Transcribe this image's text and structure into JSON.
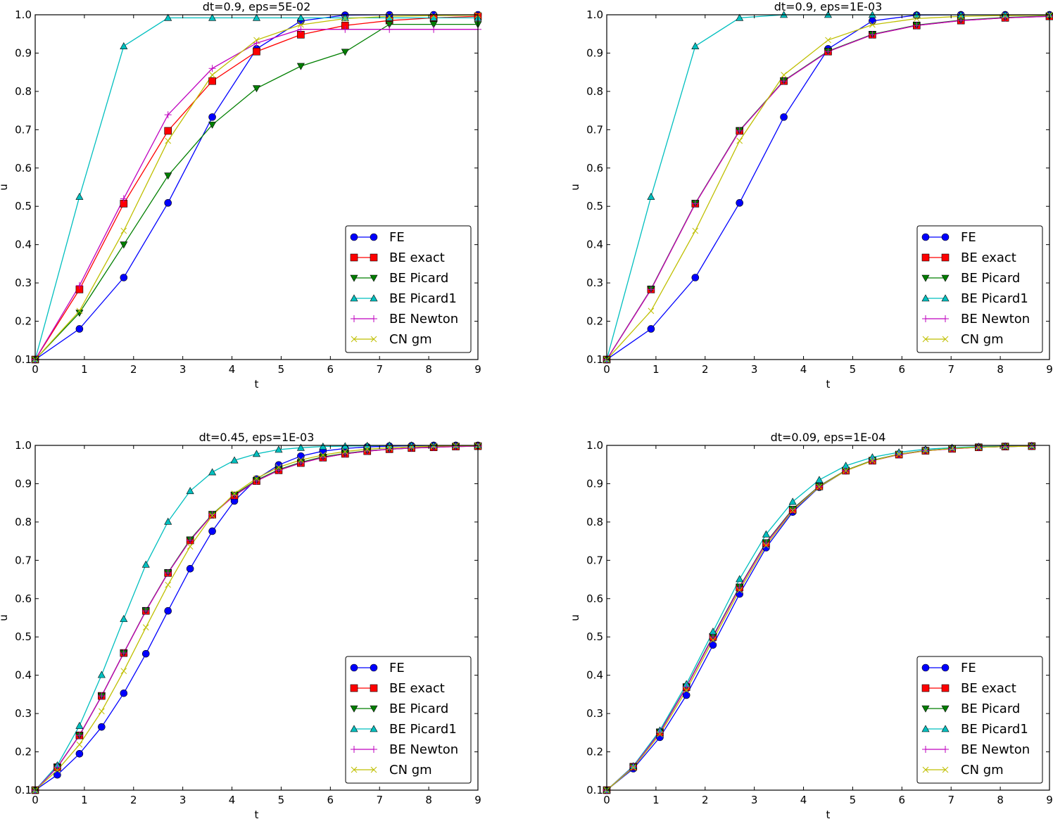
{
  "figure": {
    "legend_entries": [
      "FE",
      "BE exact",
      "BE Picard",
      "BE Picard1",
      "BE Newton",
      "CN gm"
    ]
  },
  "series_style": {
    "FE": {
      "color": "#0000ff",
      "marker": "circle"
    },
    "BE exact": {
      "color": "#ff0000",
      "marker": "square"
    },
    "BE Picard": {
      "color": "#007f00",
      "marker": "triangle-down"
    },
    "BE Picard1": {
      "color": "#00bfbf",
      "marker": "triangle-up"
    },
    "BE Newton": {
      "color": "#bf00bf",
      "marker": "plus"
    },
    "CN gm": {
      "color": "#bfbf00",
      "marker": "x"
    }
  },
  "chart_data": [
    {
      "type": "line",
      "title": "dt=0.9, eps=5E-02",
      "xlabel": "t",
      "ylabel": "u",
      "xlim": [
        0,
        9
      ],
      "ylim": [
        0.1,
        1.0
      ],
      "xticks": [
        "0",
        "1",
        "2",
        "3",
        "4",
        "5",
        "6",
        "7",
        "8",
        "9"
      ],
      "yticks": [
        "0.1",
        "0.2",
        "0.3",
        "0.4",
        "0.5",
        "0.6",
        "0.7",
        "0.8",
        "0.9",
        "1.0"
      ],
      "grid": false,
      "legend": "lower-right",
      "x": [
        0,
        0.9,
        1.8,
        2.7,
        3.6,
        4.5,
        5.4,
        6.3,
        7.2,
        8.1,
        9.0
      ],
      "series": [
        {
          "name": "FE",
          "values": [
            0.1,
            0.18,
            0.314,
            0.509,
            0.733,
            0.911,
            0.984,
            0.999,
            1.0,
            1.0,
            1.0
          ]
        },
        {
          "name": "BE exact",
          "values": [
            0.1,
            0.283,
            0.507,
            0.697,
            0.827,
            0.904,
            0.948,
            0.972,
            0.985,
            0.992,
            0.996
          ]
        },
        {
          "name": "BE Picard",
          "values": [
            0.1,
            0.222,
            0.4,
            0.58,
            0.713,
            0.808,
            0.866,
            0.903,
            0.975,
            0.975,
            0.975
          ]
        },
        {
          "name": "BE Picard1",
          "values": [
            0.1,
            0.525,
            0.918,
            0.992,
            0.992,
            0.992,
            0.992,
            0.992,
            0.992,
            0.992,
            0.992
          ]
        },
        {
          "name": "BE Newton",
          "values": [
            0.1,
            0.293,
            0.52,
            0.739,
            0.86,
            0.926,
            0.962,
            0.962,
            0.962,
            0.962,
            0.962
          ]
        },
        {
          "name": "CN gm",
          "values": [
            0.1,
            0.227,
            0.436,
            0.671,
            0.843,
            0.934,
            0.974,
            0.99,
            0.996,
            0.998,
            0.999
          ]
        }
      ],
      "marker_every": 1
    },
    {
      "type": "line",
      "title": "dt=0.9, eps=1E-03",
      "xlabel": "t",
      "ylabel": "u",
      "xlim": [
        0,
        9
      ],
      "ylim": [
        0.1,
        1.0
      ],
      "xticks": [
        "0",
        "1",
        "2",
        "3",
        "4",
        "5",
        "6",
        "7",
        "8",
        "9"
      ],
      "yticks": [
        "0.1",
        "0.2",
        "0.3",
        "0.4",
        "0.5",
        "0.6",
        "0.7",
        "0.8",
        "0.9",
        "1.0"
      ],
      "grid": false,
      "legend": "lower-right",
      "x": [
        0,
        0.9,
        1.8,
        2.7,
        3.6,
        4.5,
        5.4,
        6.3,
        7.2,
        8.1,
        9.0
      ],
      "series": [
        {
          "name": "FE",
          "values": [
            0.1,
            0.18,
            0.314,
            0.509,
            0.733,
            0.911,
            0.984,
            0.999,
            1.0,
            1.0,
            1.0
          ]
        },
        {
          "name": "BE exact",
          "values": [
            0.1,
            0.283,
            0.507,
            0.697,
            0.827,
            0.904,
            0.948,
            0.972,
            0.985,
            0.992,
            0.996
          ]
        },
        {
          "name": "BE Picard",
          "values": [
            0.1,
            0.284,
            0.508,
            0.698,
            0.828,
            0.905,
            0.949,
            0.973,
            0.986,
            0.993,
            0.997
          ]
        },
        {
          "name": "BE Picard1",
          "values": [
            0.1,
            0.525,
            0.918,
            0.992,
            1.0,
            1.0,
            1.0,
            1.0,
            1.0,
            1.0,
            1.0
          ]
        },
        {
          "name": "BE Newton",
          "values": [
            0.1,
            0.283,
            0.507,
            0.697,
            0.827,
            0.904,
            0.948,
            0.972,
            0.985,
            0.992,
            0.996
          ]
        },
        {
          "name": "CN gm",
          "values": [
            0.1,
            0.227,
            0.436,
            0.671,
            0.843,
            0.934,
            0.974,
            0.99,
            0.996,
            0.998,
            0.999
          ]
        }
      ],
      "marker_every": 1
    },
    {
      "type": "line",
      "title": "dt=0.45, eps=1E-03",
      "xlabel": "t",
      "ylabel": "u",
      "xlim": [
        0,
        9
      ],
      "ylim": [
        0.1,
        1.0
      ],
      "xticks": [
        "0",
        "1",
        "2",
        "3",
        "4",
        "5",
        "6",
        "7",
        "8",
        "9"
      ],
      "yticks": [
        "0.1",
        "0.2",
        "0.3",
        "0.4",
        "0.5",
        "0.6",
        "0.7",
        "0.8",
        "0.9",
        "1.0"
      ],
      "grid": false,
      "legend": "lower-right",
      "x": [
        0,
        0.45,
        0.9,
        1.35,
        1.8,
        2.25,
        2.7,
        3.15,
        3.6,
        4.05,
        4.5,
        4.95,
        5.4,
        5.85,
        6.3,
        6.75,
        7.2,
        7.65,
        8.1,
        8.55,
        9.0
      ],
      "series": [
        {
          "name": "FE",
          "values": [
            0.1,
            0.14,
            0.195,
            0.265,
            0.353,
            0.456,
            0.568,
            0.678,
            0.776,
            0.855,
            0.912,
            0.949,
            0.972,
            0.985,
            0.992,
            0.996,
            0.998,
            0.999,
            1.0,
            1.0,
            1.0
          ]
        },
        {
          "name": "BE exact",
          "values": [
            0.1,
            0.16,
            0.243,
            0.346,
            0.458,
            0.568,
            0.667,
            0.752,
            0.819,
            0.869,
            0.907,
            0.935,
            0.954,
            0.968,
            0.978,
            0.985,
            0.99,
            0.993,
            0.995,
            0.997,
            0.998
          ]
        },
        {
          "name": "BE Picard",
          "values": [
            0.1,
            0.16,
            0.243,
            0.346,
            0.458,
            0.569,
            0.668,
            0.754,
            0.82,
            0.871,
            0.909,
            0.937,
            0.956,
            0.97,
            0.979,
            0.986,
            0.99,
            0.993,
            0.996,
            0.997,
            0.998
          ]
        },
        {
          "name": "BE Picard1",
          "values": [
            0.1,
            0.165,
            0.268,
            0.401,
            0.547,
            0.689,
            0.801,
            0.881,
            0.93,
            0.961,
            0.978,
            0.989,
            0.994,
            0.997,
            0.998,
            0.999,
            1.0,
            1.0,
            1.0,
            1.0,
            1.0
          ]
        },
        {
          "name": "BE Newton",
          "values": [
            0.1,
            0.16,
            0.243,
            0.346,
            0.458,
            0.568,
            0.667,
            0.752,
            0.819,
            0.869,
            0.907,
            0.935,
            0.954,
            0.968,
            0.978,
            0.985,
            0.99,
            0.993,
            0.995,
            0.997,
            0.998
          ]
        },
        {
          "name": "CN gm",
          "values": [
            0.1,
            0.152,
            0.219,
            0.306,
            0.411,
            0.525,
            0.636,
            0.736,
            0.817,
            0.874,
            0.914,
            0.943,
            0.962,
            0.975,
            0.984,
            0.99,
            0.994,
            0.996,
            0.998,
            0.999,
            0.999
          ]
        }
      ],
      "marker_every": 1
    },
    {
      "type": "line",
      "title": "dt=0.09, eps=1E-04",
      "xlabel": "t",
      "ylabel": "u",
      "xlim": [
        0,
        9
      ],
      "ylim": [
        0.1,
        1.0
      ],
      "xticks": [
        "0",
        "1",
        "2",
        "3",
        "4",
        "5",
        "6",
        "7",
        "8",
        "9"
      ],
      "yticks": [
        "0.1",
        "0.2",
        "0.3",
        "0.4",
        "0.5",
        "0.6",
        "0.7",
        "0.8",
        "0.9",
        "1.0"
      ],
      "grid": false,
      "legend": "lower-right",
      "x": [
        0,
        0.54,
        1.08,
        1.62,
        2.16,
        2.7,
        3.24,
        3.78,
        4.32,
        4.86,
        5.4,
        5.94,
        6.48,
        7.02,
        7.56,
        8.1,
        8.64
      ],
      "series": [
        {
          "name": "FE",
          "values": [
            0.1,
            0.156,
            0.238,
            0.348,
            0.479,
            0.612,
            0.733,
            0.826,
            0.891,
            0.934,
            0.961,
            0.977,
            0.987,
            0.992,
            0.995,
            0.997,
            0.998
          ]
        },
        {
          "name": "BE exact",
          "values": [
            0.1,
            0.161,
            0.251,
            0.369,
            0.5,
            0.629,
            0.745,
            0.832,
            0.893,
            0.934,
            0.96,
            0.976,
            0.986,
            0.991,
            0.995,
            0.997,
            0.998
          ]
        },
        {
          "name": "BE Picard",
          "values": [
            0.1,
            0.161,
            0.252,
            0.37,
            0.502,
            0.631,
            0.747,
            0.834,
            0.894,
            0.935,
            0.961,
            0.977,
            0.986,
            0.992,
            0.995,
            0.997,
            0.998
          ]
        },
        {
          "name": "BE Picard1",
          "values": [
            0.1,
            0.163,
            0.256,
            0.377,
            0.514,
            0.651,
            0.768,
            0.853,
            0.91,
            0.947,
            0.969,
            0.982,
            0.99,
            0.994,
            0.997,
            0.998,
            0.999
          ]
        },
        {
          "name": "BE Newton",
          "values": [
            0.1,
            0.161,
            0.251,
            0.369,
            0.5,
            0.629,
            0.745,
            0.832,
            0.893,
            0.934,
            0.96,
            0.976,
            0.986,
            0.991,
            0.995,
            0.997,
            0.998
          ]
        },
        {
          "name": "CN gm",
          "values": [
            0.1,
            0.159,
            0.246,
            0.361,
            0.492,
            0.622,
            0.739,
            0.83,
            0.892,
            0.934,
            0.96,
            0.977,
            0.986,
            0.992,
            0.995,
            0.997,
            0.998
          ]
        }
      ],
      "marker_every": 1
    }
  ]
}
